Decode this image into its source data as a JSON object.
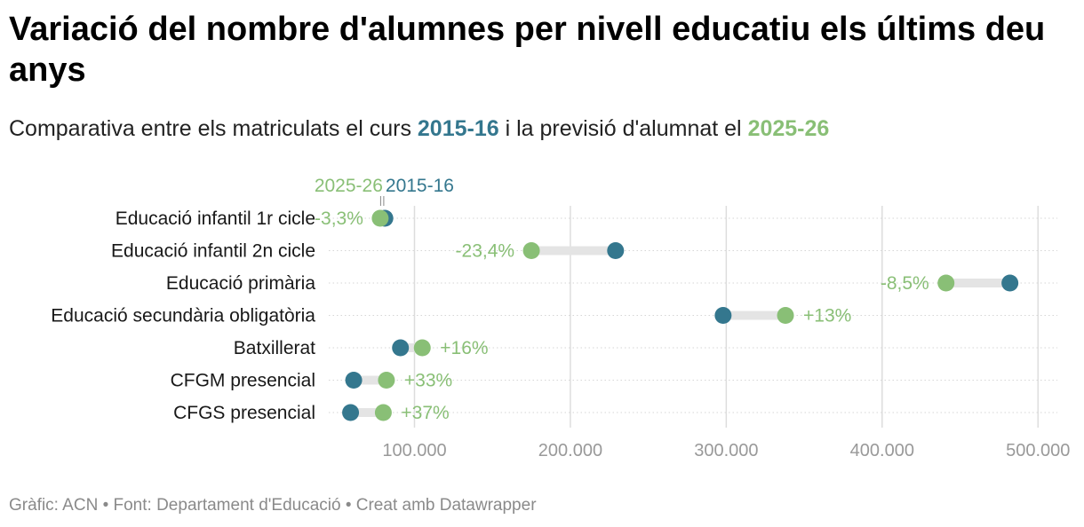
{
  "title": "Variació del nombre d'alumnes per nivell educatiu els últims deu anys",
  "subtitle": {
    "prefix": "Comparativa entre els matriculats el curs ",
    "year1": "2015-16",
    "middle": " i la previsió d'alumnat el ",
    "year2": "2025-26"
  },
  "colors": {
    "year1": "#34778e",
    "year2": "#89bf76",
    "connector": "#e4e4e4",
    "grid": "#dddddd",
    "axis_text": "#999999"
  },
  "chart_data": {
    "type": "dumbbell",
    "legend": {
      "series1": "2015-16",
      "series2": "2025-26",
      "placement": "above-first-row"
    },
    "categories": [
      "Educació infantil 1r cicle",
      "Educació infantil 2n cicle",
      "Educació primària",
      "Educació secundària obligatòria",
      "Batxillerat",
      "CFGM presencial",
      "CFGS presencial"
    ],
    "series": [
      {
        "name": "2015-16",
        "values": [
          81000,
          229000,
          482000,
          298000,
          91000,
          61000,
          59000
        ]
      },
      {
        "name": "2025-26",
        "values": [
          78000,
          175000,
          441000,
          338000,
          105000,
          82000,
          80000
        ]
      }
    ],
    "change_labels": [
      "-3,3%",
      "-23,4%",
      "-8,5%",
      "+13%",
      "+16%",
      "+33%",
      "+37%"
    ],
    "x_ticks": [
      100000,
      200000,
      300000,
      400000,
      500000
    ],
    "x_tick_labels": [
      "100.000",
      "200.000",
      "300.000",
      "400.000",
      "500.000"
    ],
    "xlim": [
      45000,
      505000
    ],
    "grid": true
  },
  "footer": "Gràfic: ACN • Font: Departament d'Educació • Creat amb Datawrapper"
}
